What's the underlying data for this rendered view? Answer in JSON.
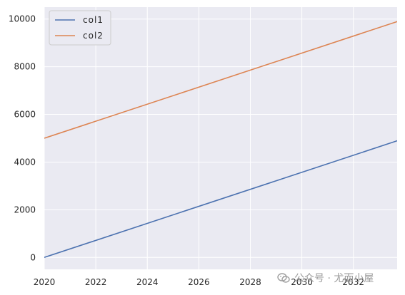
{
  "chart_data": {
    "type": "line",
    "x": [
      2020,
      2034
    ],
    "series": [
      {
        "name": "col1",
        "values": [
          0,
          5000
        ],
        "color": "#4c72b0"
      },
      {
        "name": "col2",
        "values": [
          5000,
          10000
        ],
        "color": "#dd8452"
      }
    ],
    "xlim": [
      2020,
      2033.7
    ],
    "ylim": [
      -500,
      10500
    ],
    "xticks": [
      2020,
      2022,
      2024,
      2026,
      2028,
      2030,
      2032
    ],
    "yticks": [
      0,
      2000,
      4000,
      6000,
      8000,
      10000
    ],
    "grid": true,
    "legend_position": "top-left",
    "background": "#eaeaf2"
  },
  "watermark": {
    "text": "公众号 · 尤而小屋"
  }
}
